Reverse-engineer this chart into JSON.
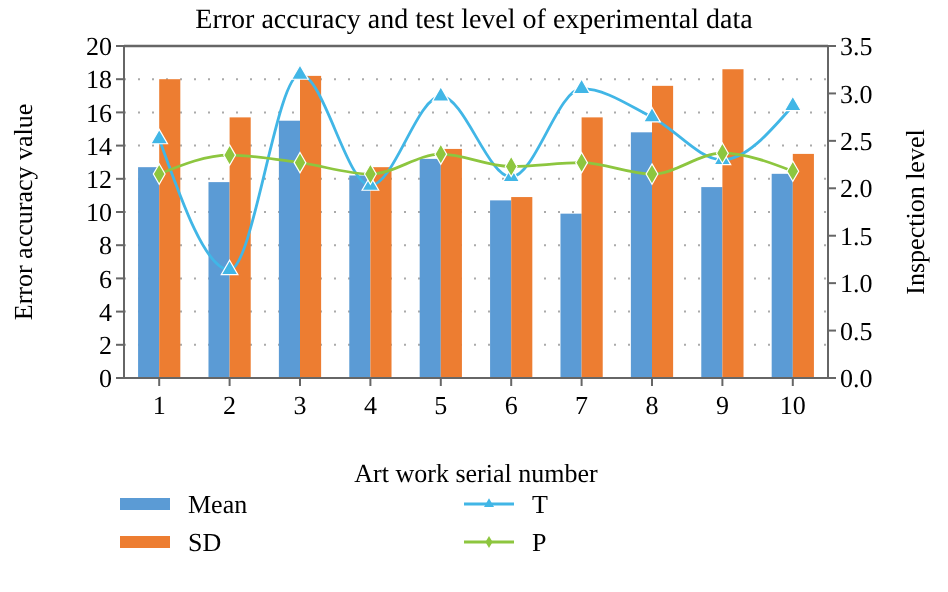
{
  "chart_data": {
    "type": "bar",
    "title": "Error accuracy and test level of experimental data",
    "xlabel": "Art work serial number",
    "ylabel": "Error accuracy value",
    "y2label": "Inspection level",
    "categories": [
      "1",
      "2",
      "3",
      "4",
      "5",
      "6",
      "7",
      "8",
      "9",
      "10"
    ],
    "series": [
      {
        "name": "Mean",
        "color": "#5b9bd5",
        "values": [
          12.7,
          11.8,
          15.5,
          12.2,
          13.2,
          10.7,
          9.9,
          14.8,
          11.5,
          12.3
        ]
      },
      {
        "name": "SD",
        "color": "#ed7d31",
        "values": [
          18.0,
          15.7,
          18.2,
          12.7,
          13.8,
          10.9,
          15.7,
          17.6,
          18.6,
          13.5
        ]
      },
      {
        "name": "T",
        "type": "line",
        "axis": "y2",
        "marker": "triangle",
        "color": "#41b6e6",
        "values": [
          2.52,
          1.14,
          3.2,
          2.03,
          2.97,
          2.12,
          3.05,
          2.75,
          2.3,
          2.87
        ]
      },
      {
        "name": "P",
        "type": "line",
        "axis": "y2",
        "marker": "diamond",
        "color": "#8dc63f",
        "values": [
          2.15,
          2.35,
          2.27,
          2.15,
          2.36,
          2.23,
          2.27,
          2.15,
          2.37,
          2.18
        ]
      }
    ],
    "ylim": [
      0,
      20
    ],
    "yticks": [
      0,
      2,
      4,
      6,
      8,
      10,
      12,
      14,
      16,
      18,
      20
    ],
    "y2lim": [
      0,
      3.5
    ],
    "y2ticks": [
      {
        "value": 0,
        "label": "0.0"
      },
      {
        "value": 0.5,
        "label": "0.5"
      },
      {
        "value": 1,
        "label": "1.0"
      },
      {
        "value": 1.5,
        "label": "1.5"
      },
      {
        "value": 2,
        "label": "2.0"
      },
      {
        "value": 2.5,
        "label": "2.5"
      },
      {
        "value": 3,
        "label": "3.0"
      },
      {
        "value": 3.5,
        "label": "3.5"
      }
    ],
    "grid": "y",
    "legend": "bottom"
  }
}
